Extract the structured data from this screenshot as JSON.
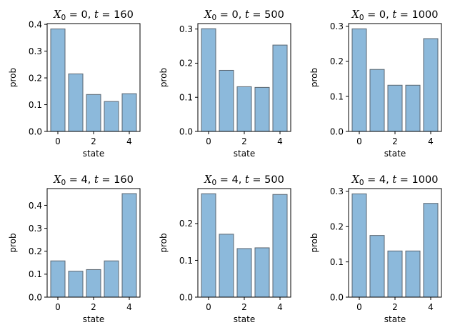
{
  "figure": {
    "background": "#ffffff"
  },
  "style": {
    "bar_fill": "#8cb9db",
    "bar_stroke": "#5b6670",
    "axis_color": "#000000"
  },
  "chart_data": [
    {
      "type": "bar",
      "title": {
        "var": "X",
        "sub": "0",
        "rest": " = 0, ",
        "tvar": "t",
        "tval": " = 160"
      },
      "xlabel": "state",
      "ylabel": "prob",
      "categories": [
        0,
        1,
        2,
        3,
        4
      ],
      "values": [
        0.383,
        0.215,
        0.138,
        0.112,
        0.141
      ],
      "xlim": [
        -0.6,
        4.6
      ],
      "ylim": [
        0,
        0.403
      ],
      "yticks": [
        0.0,
        0.1,
        0.2,
        0.3,
        0.4
      ],
      "ytick_labels": [
        "0.0",
        "0.1",
        "0.2",
        "0.3",
        "0.4"
      ],
      "xticks": [
        0,
        2,
        4
      ],
      "xtick_labels": [
        "0",
        "2",
        "4"
      ],
      "grid": false
    },
    {
      "type": "bar",
      "title": {
        "var": "X",
        "sub": "0",
        "rest": " = 0, ",
        "tvar": "t",
        "tval": " = 500"
      },
      "xlabel": "state",
      "ylabel": "prob",
      "categories": [
        0,
        1,
        2,
        3,
        4
      ],
      "values": [
        0.301,
        0.179,
        0.131,
        0.129,
        0.253
      ],
      "xlim": [
        -0.6,
        4.6
      ],
      "ylim": [
        0,
        0.316
      ],
      "yticks": [
        0.0,
        0.1,
        0.2,
        0.3
      ],
      "ytick_labels": [
        "0.0",
        "0.1",
        "0.2",
        "0.3"
      ],
      "xticks": [
        0,
        2,
        4
      ],
      "xtick_labels": [
        "0",
        "2",
        "4"
      ],
      "grid": false
    },
    {
      "type": "bar",
      "title": {
        "var": "X",
        "sub": "0",
        "rest": " = 0, ",
        "tvar": "t",
        "tval": " = 1000"
      },
      "xlabel": "state",
      "ylabel": "prob",
      "categories": [
        0,
        1,
        2,
        3,
        4
      ],
      "values": [
        0.293,
        0.177,
        0.132,
        0.132,
        0.265
      ],
      "xlim": [
        -0.6,
        4.6
      ],
      "ylim": [
        0,
        0.308
      ],
      "yticks": [
        0.0,
        0.1,
        0.2,
        0.3
      ],
      "ytick_labels": [
        "0.0",
        "0.1",
        "0.2",
        "0.3"
      ],
      "xticks": [
        0,
        2,
        4
      ],
      "xtick_labels": [
        "0",
        "2",
        "4"
      ],
      "grid": false
    },
    {
      "type": "bar",
      "title": {
        "var": "X",
        "sub": "0",
        "rest": " = 4, ",
        "tvar": "t",
        "tval": " = 160"
      },
      "xlabel": "state",
      "ylabel": "prob",
      "categories": [
        0,
        1,
        2,
        3,
        4
      ],
      "values": [
        0.158,
        0.113,
        0.12,
        0.158,
        0.451
      ],
      "xlim": [
        -0.6,
        4.6
      ],
      "ylim": [
        0,
        0.473
      ],
      "yticks": [
        0.0,
        0.1,
        0.2,
        0.3,
        0.4
      ],
      "ytick_labels": [
        "0.0",
        "0.1",
        "0.2",
        "0.3",
        "0.4"
      ],
      "xticks": [
        0,
        2,
        4
      ],
      "xtick_labels": [
        "0",
        "2",
        "4"
      ],
      "grid": false
    },
    {
      "type": "bar",
      "title": {
        "var": "X",
        "sub": "0",
        "rest": " = 4, ",
        "tvar": "t",
        "tval": " = 500"
      },
      "xlabel": "state",
      "ylabel": "prob",
      "categories": [
        0,
        1,
        2,
        3,
        4
      ],
      "values": [
        0.281,
        0.171,
        0.132,
        0.134,
        0.279
      ],
      "xlim": [
        -0.6,
        4.6
      ],
      "ylim": [
        0,
        0.295
      ],
      "yticks": [
        0.0,
        0.1,
        0.2
      ],
      "ytick_labels": [
        "0.0",
        "0.1",
        "0.2"
      ],
      "xticks": [
        0,
        2,
        4
      ],
      "xtick_labels": [
        "0",
        "2",
        "4"
      ],
      "grid": false
    },
    {
      "type": "bar",
      "title": {
        "var": "X",
        "sub": "0",
        "rest": " = 4, ",
        "tvar": "t",
        "tval": " = 1000"
      },
      "xlabel": "state",
      "ylabel": "prob",
      "categories": [
        0,
        1,
        2,
        3,
        4
      ],
      "values": [
        0.293,
        0.175,
        0.131,
        0.131,
        0.266
      ],
      "xlim": [
        -0.6,
        4.6
      ],
      "ylim": [
        0,
        0.308
      ],
      "yticks": [
        0.0,
        0.1,
        0.2,
        0.3
      ],
      "ytick_labels": [
        "0.0",
        "0.1",
        "0.2",
        "0.3"
      ],
      "xticks": [
        0,
        2,
        4
      ],
      "xtick_labels": [
        "0",
        "2",
        "4"
      ],
      "grid": false
    }
  ]
}
